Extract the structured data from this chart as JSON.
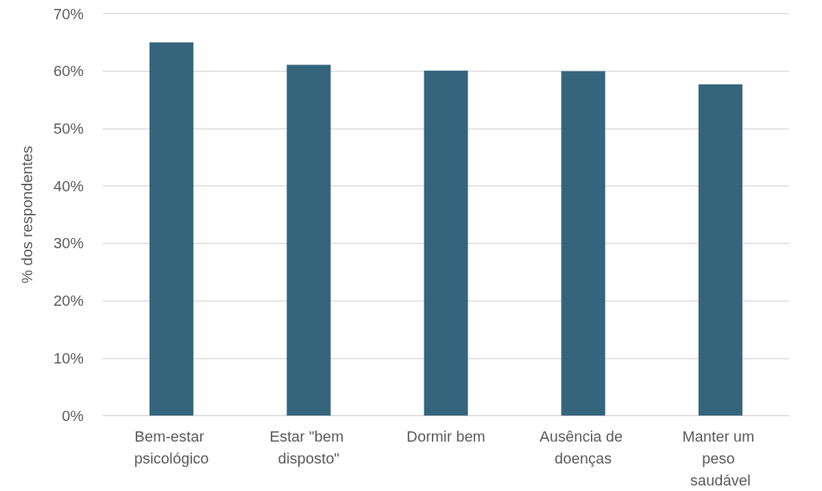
{
  "chart_data": {
    "type": "bar",
    "ylabel": "% dos respondentes",
    "categories": [
      "Bem-estar psicológico",
      "Estar \"bem disposto\"",
      "Dormir bem",
      "Ausência de doenças",
      "Manter um peso saudável"
    ],
    "values": [
      65.0,
      61.1,
      60.1,
      60.0,
      57.7
    ],
    "color": "#35657d",
    "ylim": [
      0,
      70
    ],
    "yticks": [
      {
        "value": 0,
        "label": "0%"
      },
      {
        "value": 10,
        "label": "10%"
      },
      {
        "value": 20,
        "label": "20%"
      },
      {
        "value": 30,
        "label": "30%"
      },
      {
        "value": 40,
        "label": "40%"
      },
      {
        "value": 50,
        "label": "50%"
      },
      {
        "value": 60,
        "label": "60%"
      },
      {
        "value": 70,
        "label": "70%"
      }
    ],
    "grid": "y"
  }
}
